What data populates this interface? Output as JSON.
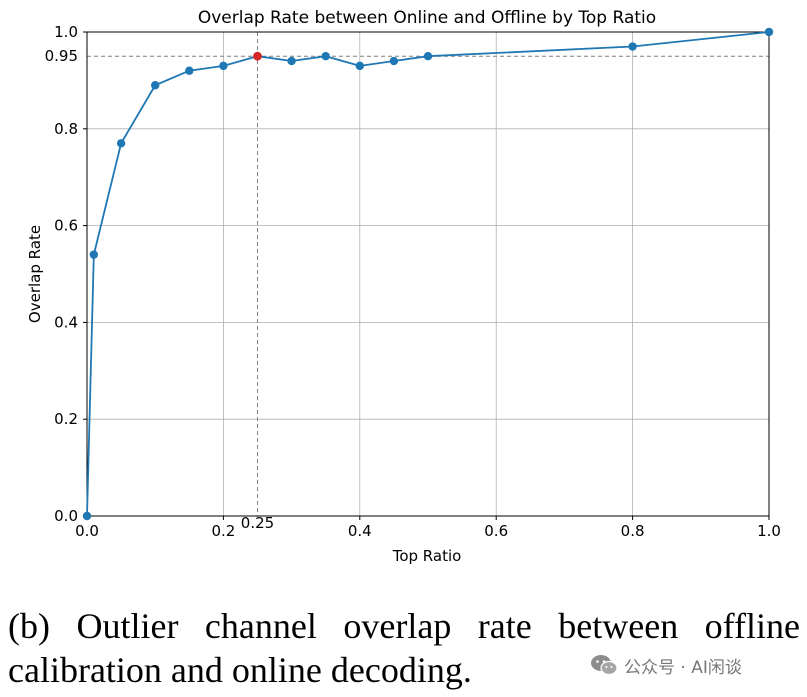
{
  "chart_data": {
    "type": "line",
    "title": "Overlap Rate between Online and Offline by Top Ratio",
    "xlabel": "Top Ratio",
    "ylabel": "Overlap Rate",
    "xlim": [
      0,
      1
    ],
    "ylim": [
      0,
      1
    ],
    "xticks": [
      "0.0",
      "0.2",
      "0.4",
      "0.6",
      "0.8",
      "1.0"
    ],
    "yticks": [
      "0.0",
      "0.2",
      "0.4",
      "0.6",
      "0.8",
      "1.0"
    ],
    "grid": true,
    "series": [
      {
        "color": "#1f77b4",
        "x": [
          0.0,
          0.01,
          0.05,
          0.1,
          0.15,
          0.2,
          0.25,
          0.3,
          0.35,
          0.4,
          0.45,
          0.5,
          0.8,
          1.0
        ],
        "y": [
          0.0,
          0.54,
          0.77,
          0.89,
          0.92,
          0.93,
          0.95,
          0.94,
          0.95,
          0.93,
          0.94,
          0.95,
          0.97,
          1.0
        ]
      }
    ],
    "highlight_point": {
      "x": 0.25,
      "y": 0.95,
      "color": "#d62728"
    },
    "reference_lines": {
      "y": 0.95,
      "y_label": "0.95",
      "x": 0.25,
      "x_label": "0.25",
      "color": "#7f7f7f",
      "style": "dashed"
    }
  },
  "caption": "(b) Outlier channel overlap rate between offline calibration and online decoding.",
  "watermark": {
    "text": "公众号 · AI闲谈",
    "icon": "wechat-icon"
  }
}
